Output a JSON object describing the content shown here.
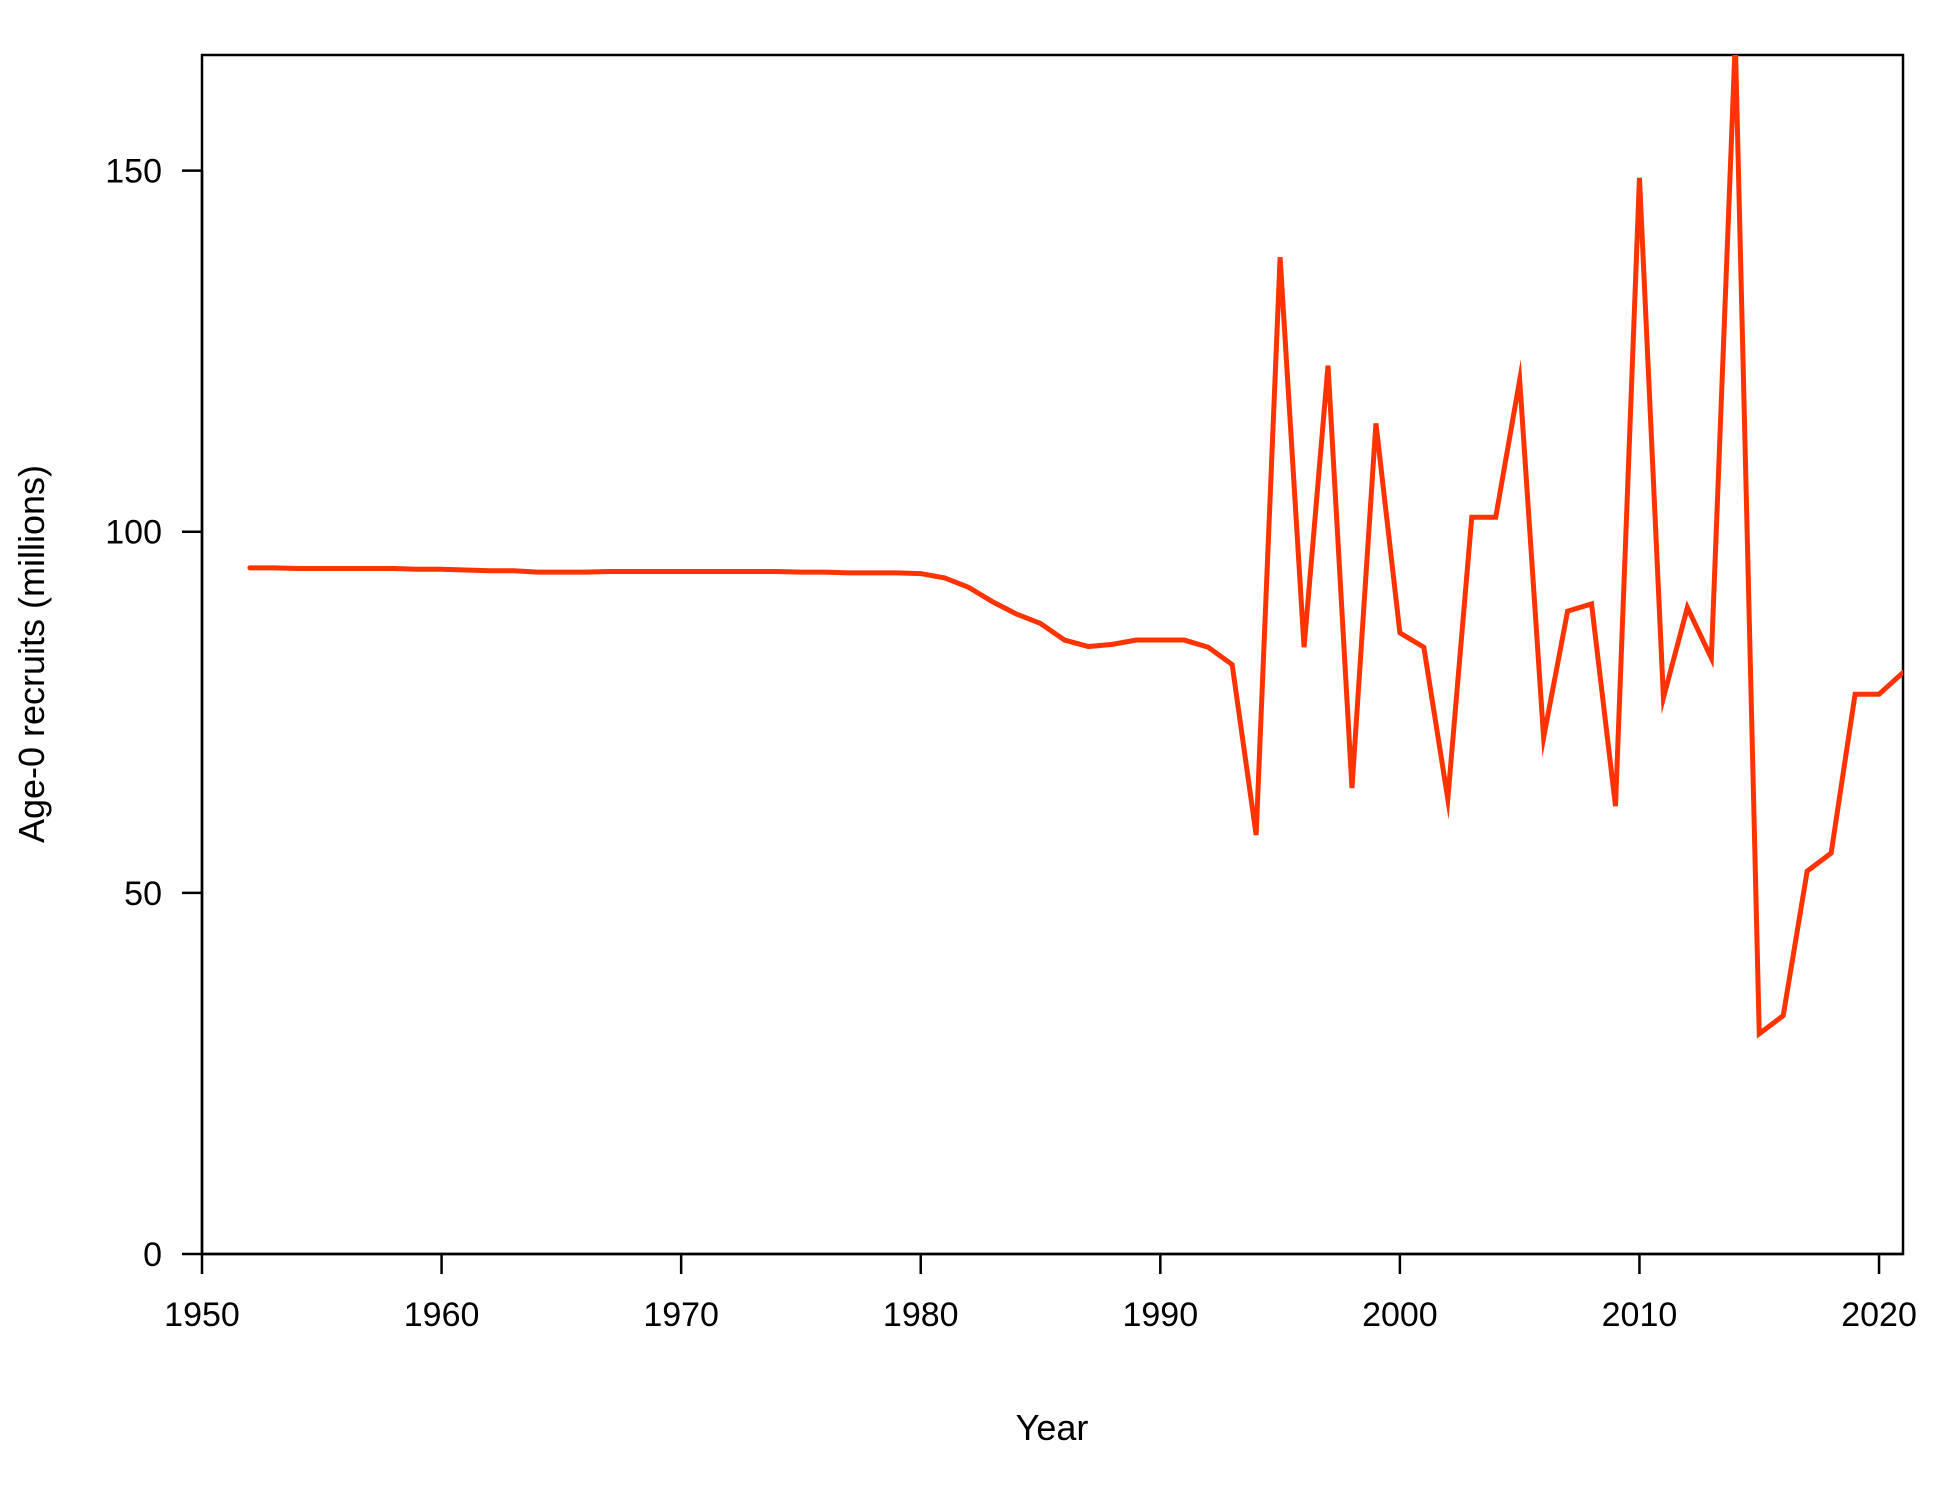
{
  "chart_data": {
    "type": "line",
    "title": "",
    "xlabel": "Year",
    "ylabel": "Age-0 recruits (millions)",
    "xlim": [
      1950,
      2021
    ],
    "ylim": [
      0,
      166
    ],
    "x_ticks": [
      1950,
      1960,
      1970,
      1980,
      1990,
      2000,
      2010,
      2020
    ],
    "x_tick_labels": [
      "1950",
      "1960",
      "1970",
      "1980",
      "1990",
      "2000",
      "2010",
      "2020"
    ],
    "y_ticks": [
      0,
      50,
      100,
      150
    ],
    "y_tick_labels": [
      "0",
      "50",
      "100",
      "150"
    ],
    "grid": false,
    "line_color": "#ff3300",
    "series": [
      {
        "x": [
          1952,
          1953,
          1954,
          1955,
          1956,
          1957,
          1958,
          1959,
          1960,
          1961,
          1962,
          1963,
          1964,
          1965,
          1966,
          1967,
          1968,
          1969,
          1970,
          1971,
          1972,
          1973,
          1974,
          1975,
          1976,
          1977,
          1978,
          1979,
          1980,
          1981,
          1982,
          1983,
          1984,
          1985,
          1986,
          1987,
          1988,
          1989,
          1990,
          1991,
          1992,
          1993,
          1994,
          1995,
          1996,
          1997,
          1998,
          1999,
          2000,
          2001,
          2002,
          2003,
          2004,
          2005,
          2006,
          2007,
          2008,
          2009,
          2010,
          2011,
          2012,
          2013,
          2014,
          2015,
          2016,
          2017,
          2018,
          2019,
          2020,
          2021
        ],
        "values": [
          95,
          95,
          94.9,
          94.9,
          94.9,
          94.9,
          94.9,
          94.8,
          94.8,
          94.7,
          94.6,
          94.6,
          94.4,
          94.4,
          94.4,
          94.5,
          94.5,
          94.5,
          94.5,
          94.5,
          94.5,
          94.5,
          94.5,
          94.4,
          94.4,
          94.3,
          94.3,
          94.3,
          94.2,
          93.6,
          92.3,
          90.3,
          88.6,
          87.3,
          85,
          84.1,
          84.4,
          85,
          85,
          85,
          84,
          81.6,
          58,
          138,
          84,
          123,
          64.5,
          115,
          86,
          84,
          63,
          102,
          102,
          121,
          71.5,
          89,
          90,
          62,
          149,
          77,
          89.5,
          82.5,
          168,
          30.5,
          33,
          53,
          55.5,
          77.5,
          77.5,
          80.5
        ]
      }
    ]
  }
}
